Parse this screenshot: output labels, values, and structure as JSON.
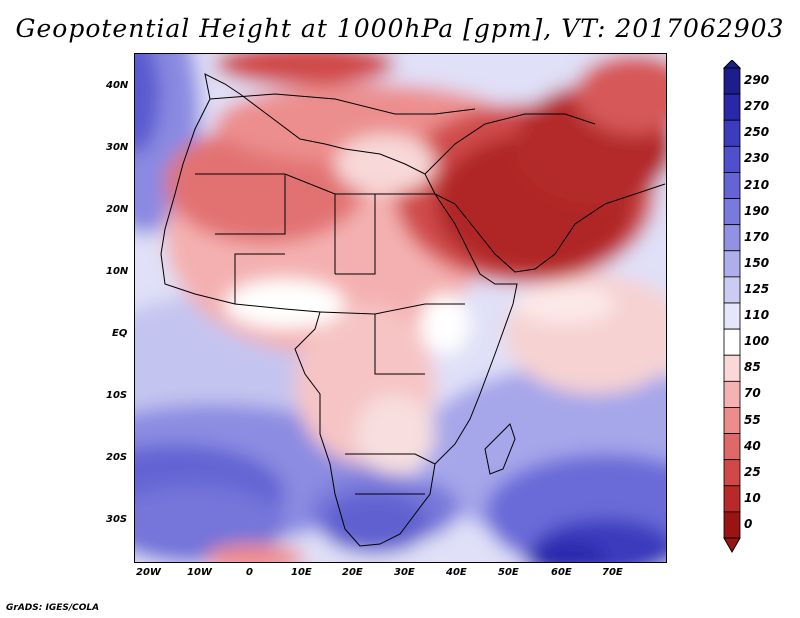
{
  "title": "Geopotential Height at 1000hPa [gpm], VT: 2017062903",
  "footer": "GrADS: IGES/COLA",
  "map": {
    "region": "Africa and Middle East",
    "lon_range": [
      -23,
      80
    ],
    "lat_range": [
      -37,
      45
    ],
    "lat_ticks": [
      "40N",
      "30N",
      "20N",
      "10N",
      "EQ",
      "10S",
      "20S",
      "30S"
    ],
    "lon_ticks": [
      "20W",
      "10W",
      "0",
      "10E",
      "20E",
      "30E",
      "40E",
      "50E",
      "60E",
      "70E"
    ]
  },
  "colorbar": {
    "units": "gpm",
    "labels": [
      "290",
      "270",
      "250",
      "230",
      "210",
      "190",
      "170",
      "150",
      "125",
      "110",
      "100",
      "85",
      "70",
      "55",
      "40",
      "25",
      "10",
      "0"
    ],
    "colors": [
      "#1d1d8c",
      "#2828a8",
      "#3c3cbe",
      "#5050cc",
      "#6464d6",
      "#7a7adc",
      "#9292e4",
      "#aeaeec",
      "#cbcbf3",
      "#e6e6fa",
      "#ffffff",
      "#fbd8d8",
      "#f4b2b2",
      "#ec8c8c",
      "#e06868",
      "#d04848",
      "#b82a2a",
      "#9a1414"
    ]
  }
}
